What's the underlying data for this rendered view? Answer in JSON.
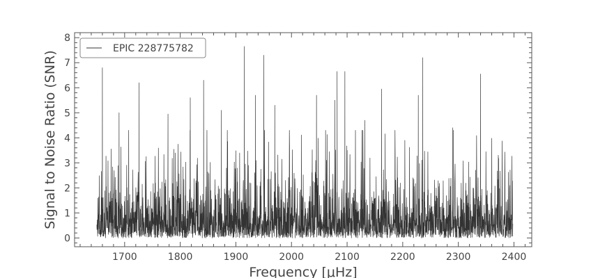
{
  "chart_data": {
    "type": "line",
    "title": "",
    "xlabel": "Frequency [μHz]",
    "ylabel": "Signal to Noise Ratio (SNR)",
    "xlim": [
      1610,
      2432
    ],
    "ylim": [
      -0.35,
      8.2
    ],
    "xticks": [
      1700,
      1800,
      1900,
      2000,
      2100,
      2200,
      2300,
      2400
    ],
    "yticks": [
      0,
      1,
      2,
      3,
      4,
      5,
      6,
      7,
      8
    ],
    "x_range": [
      1650,
      2398
    ],
    "grid": false,
    "legend_position": "top-left",
    "series": [
      {
        "name": "EPIC 228775782",
        "color": "#333333",
        "noise_baseline_snr": 0.8,
        "prominent_peaks": [
          {
            "x": 1660,
            "y": 6.8
          },
          {
            "x": 1690,
            "y": 5.0
          },
          {
            "x": 1726,
            "y": 6.2
          },
          {
            "x": 1778,
            "y": 4.95
          },
          {
            "x": 1818,
            "y": 5.6
          },
          {
            "x": 1842,
            "y": 6.3
          },
          {
            "x": 1874,
            "y": 5.1
          },
          {
            "x": 1915,
            "y": 7.65
          },
          {
            "x": 1935,
            "y": 5.7
          },
          {
            "x": 1950,
            "y": 7.3
          },
          {
            "x": 1970,
            "y": 5.3
          },
          {
            "x": 2045,
            "y": 5.7
          },
          {
            "x": 2078,
            "y": 5.5
          },
          {
            "x": 2082,
            "y": 6.65
          },
          {
            "x": 2096,
            "y": 6.65
          },
          {
            "x": 2132,
            "y": 4.7
          },
          {
            "x": 2162,
            "y": 5.95
          },
          {
            "x": 2228,
            "y": 5.7
          },
          {
            "x": 2236,
            "y": 7.2
          },
          {
            "x": 2290,
            "y": 4.4
          },
          {
            "x": 2340,
            "y": 6.55
          }
        ]
      }
    ]
  }
}
